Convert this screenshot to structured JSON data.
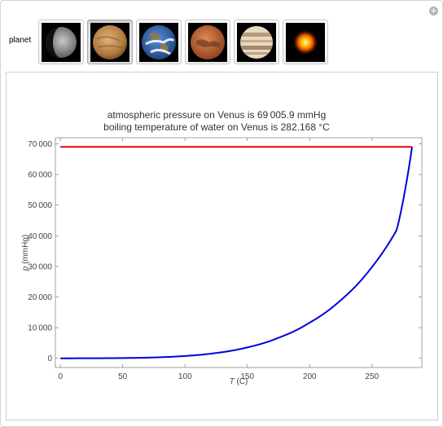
{
  "controls": {
    "label": "planet",
    "options": [
      {
        "name": "Mercury",
        "icon": "mercury-icon",
        "selected": false
      },
      {
        "name": "Venus",
        "icon": "venus-icon",
        "selected": true
      },
      {
        "name": "Earth",
        "icon": "earth-icon",
        "selected": false
      },
      {
        "name": "Mars",
        "icon": "mars-icon",
        "selected": false
      },
      {
        "name": "Jupiter",
        "icon": "jupiter-icon",
        "selected": false
      },
      {
        "name": "Sun",
        "icon": "sun-icon",
        "selected": false
      }
    ]
  },
  "chart_data": {
    "type": "line",
    "title": "atmospheric pressure on Venus is 69 005.9 mmHg",
    "subtitle": "boiling temperature of water on Venus is 282.168 °C",
    "xlabel_var": "T",
    "xlabel_unit": " (C)",
    "ylabel_var": "p",
    "ylabel_unit": " (mmHg)",
    "xlim": [
      -4,
      290
    ],
    "ylim": [
      -3000,
      72000
    ],
    "xticks": [
      0,
      50,
      100,
      150,
      200,
      250
    ],
    "xtick_labels": [
      "0",
      "50",
      "100",
      "150",
      "200",
      "250"
    ],
    "yticks": [
      0,
      10000,
      20000,
      30000,
      40000,
      50000,
      60000,
      70000
    ],
    "ytick_labels": [
      "0",
      "10 000",
      "20 000",
      "30 000",
      "40 000",
      "50 000",
      "60 000",
      "70 000"
    ],
    "grid": false,
    "series": [
      {
        "color": "#0000dd",
        "x": [
          0,
          25,
          50,
          75,
          100,
          125,
          150,
          175,
          200,
          225,
          250,
          270,
          282.168
        ],
        "y": [
          4.6,
          24,
          93,
          289,
          760,
          1740,
          3570,
          6700,
          11650,
          19000,
          29800,
          42000,
          69005.9
        ]
      },
      {
        "color": "#ee0000",
        "x": [
          0,
          282.168
        ],
        "y": [
          69005.9,
          69005.9
        ]
      }
    ]
  }
}
